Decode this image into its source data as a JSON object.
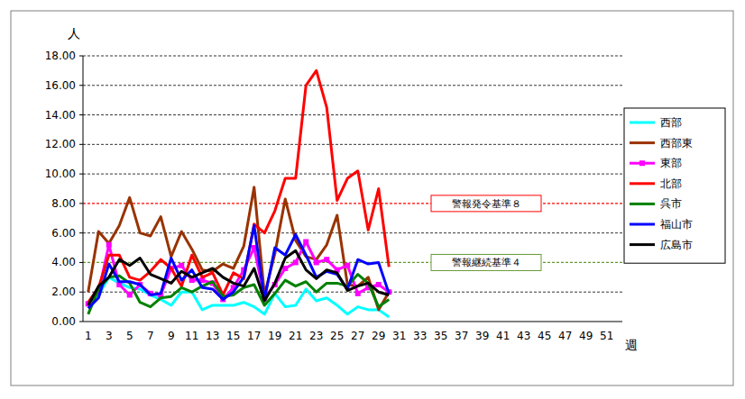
{
  "chart_data": {
    "type": "line",
    "y_label": "人",
    "x_label": "週",
    "categories": [
      "1",
      null,
      "3",
      null,
      "5",
      null,
      "7",
      null,
      "9",
      null,
      "11",
      null,
      "13",
      null,
      "15",
      null,
      "17",
      null,
      "19",
      null,
      "21",
      null,
      "23",
      null,
      "25",
      null,
      "27",
      null,
      "29",
      null,
      "31",
      null,
      "33",
      null,
      "35",
      null,
      "37",
      null,
      "39",
      null,
      "41",
      null,
      "43",
      null,
      "45",
      null,
      "47",
      null,
      "49",
      null,
      "51",
      null
    ],
    "series": [
      {
        "name": "西部",
        "color": "#00ffff",
        "marker": "none",
        "values": [
          1.0,
          1.8,
          3.0,
          2.6,
          2.3,
          2.2,
          1.8,
          1.5,
          1.1,
          2.0,
          2.0,
          0.8,
          1.1,
          1.1,
          1.1,
          1.3,
          1.0,
          0.5,
          1.9,
          1.0,
          1.1,
          2.2,
          1.4,
          1.6,
          1.1,
          0.5,
          1.0,
          0.8,
          0.8,
          0.3,
          null,
          null,
          null,
          null,
          null,
          null,
          null,
          null,
          null,
          null,
          null,
          null,
          null,
          null,
          null,
          null,
          null,
          null,
          null,
          null,
          null,
          null
        ]
      },
      {
        "name": "西部東",
        "color": "#993300",
        "marker": "none",
        "values": [
          2.0,
          6.1,
          5.3,
          6.5,
          8.4,
          6.0,
          5.8,
          7.1,
          4.4,
          6.1,
          4.9,
          3.5,
          3.4,
          3.9,
          3.6,
          5.1,
          9.1,
          1.8,
          4.6,
          8.3,
          5.5,
          4.4,
          4.2,
          5.2,
          7.2,
          2.5,
          2.4,
          3.0,
          0.8,
          2.0,
          null,
          null,
          null,
          null,
          null,
          null,
          null,
          null,
          null,
          null,
          null,
          null,
          null,
          null,
          null,
          null,
          null,
          null,
          null,
          null,
          null,
          null
        ]
      },
      {
        "name": "東部",
        "color": "#ff00ff",
        "marker": "square",
        "values": [
          1.2,
          2.0,
          5.2,
          2.5,
          1.8,
          2.5,
          1.9,
          1.8,
          3.6,
          3.8,
          2.8,
          2.8,
          2.6,
          1.5,
          2.3,
          3.5,
          5.0,
          1.6,
          2.5,
          3.6,
          4.0,
          5.4,
          4.0,
          4.2,
          3.5,
          3.8,
          1.9,
          2.3,
          2.5,
          2.0,
          null,
          null,
          null,
          null,
          null,
          null,
          null,
          null,
          null,
          null,
          null,
          null,
          null,
          null,
          null,
          null,
          null,
          null,
          null,
          null,
          null,
          null
        ]
      },
      {
        "name": "北部",
        "color": "#ff0000",
        "marker": "none",
        "values": [
          1.3,
          2.3,
          4.5,
          4.5,
          3.0,
          2.8,
          3.4,
          4.2,
          3.6,
          2.4,
          4.5,
          3.0,
          3.3,
          1.8,
          3.3,
          2.9,
          6.6,
          6.0,
          7.5,
          9.7,
          9.7,
          16.0,
          17.0,
          14.5,
          8.2,
          9.7,
          10.2,
          6.2,
          9.0,
          3.7,
          null,
          null,
          null,
          null,
          null,
          null,
          null,
          null,
          null,
          null,
          null,
          null,
          null,
          null,
          null,
          null,
          null,
          null,
          null,
          null,
          null,
          null
        ]
      },
      {
        "name": "呉市",
        "color": "#008000",
        "marker": "none",
        "values": [
          0.5,
          2.2,
          3.0,
          3.1,
          2.6,
          1.3,
          1.0,
          1.6,
          1.7,
          2.3,
          2.0,
          2.4,
          2.7,
          1.7,
          1.8,
          2.3,
          2.5,
          1.1,
          1.9,
          2.8,
          2.4,
          2.7,
          2.0,
          2.6,
          2.6,
          2.4,
          3.2,
          2.6,
          1.0,
          1.5,
          null,
          null,
          null,
          null,
          null,
          null,
          null,
          null,
          null,
          null,
          null,
          null,
          null,
          null,
          null,
          null,
          null,
          null,
          null,
          null,
          null,
          null
        ]
      },
      {
        "name": "福山市",
        "color": "#0000ff",
        "marker": "none",
        "values": [
          0.9,
          1.6,
          3.9,
          2.7,
          2.7,
          2.5,
          1.8,
          1.9,
          4.3,
          2.8,
          3.5,
          2.3,
          2.2,
          1.5,
          2.0,
          3.0,
          6.5,
          1.5,
          5.0,
          4.5,
          5.9,
          4.5,
          3.0,
          3.4,
          3.2,
          2.2,
          4.2,
          3.9,
          4.0,
          1.9,
          null,
          null,
          null,
          null,
          null,
          null,
          null,
          null,
          null,
          null,
          null,
          null,
          null,
          null,
          null,
          null,
          null,
          null,
          null,
          null,
          null,
          null
        ]
      },
      {
        "name": "広島市",
        "color": "#000000",
        "marker": "none",
        "values": [
          1.1,
          2.4,
          3.0,
          4.2,
          3.8,
          4.3,
          3.2,
          2.9,
          2.6,
          3.4,
          3.0,
          3.3,
          3.6,
          3.0,
          2.6,
          2.4,
          3.6,
          1.4,
          2.6,
          4.3,
          4.8,
          3.5,
          2.9,
          3.5,
          3.3,
          2.1,
          2.4,
          2.6,
          2.0,
          1.8,
          null,
          null,
          null,
          null,
          null,
          null,
          null,
          null,
          null,
          null,
          null,
          null,
          null,
          null,
          null,
          null,
          null,
          null,
          null,
          null,
          null,
          null
        ]
      }
    ],
    "ylim": [
      0,
      18
    ],
    "yticks": [
      {
        "value": 0,
        "label": "0.00"
      },
      {
        "value": 2,
        "label": "2.00"
      },
      {
        "value": 4,
        "label": "4.00"
      },
      {
        "value": 6,
        "label": "6.00"
      },
      {
        "value": 8,
        "label": "8.00"
      },
      {
        "value": 10,
        "label": "10.00"
      },
      {
        "value": 12,
        "label": "12.00"
      },
      {
        "value": 14,
        "label": "14.00"
      },
      {
        "value": 16,
        "label": "16.00"
      },
      {
        "value": 18,
        "label": "18.00"
      }
    ],
    "grid": true,
    "legend": "right",
    "annotations": [
      {
        "label": "警報発令基準８",
        "value": 8,
        "color": "#ff0000"
      },
      {
        "label": "警報継続基準４",
        "value": 4,
        "color": "#669933"
      }
    ]
  }
}
